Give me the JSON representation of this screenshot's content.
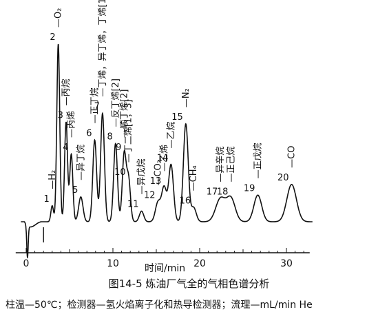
{
  "chart_data": {
    "type": "line",
    "title": "图14-5  炼油厂气全的气相色谱分析",
    "subtitle": "柱温—50℃；检测器—氢火焰离子化和热导检测器；流理—mL/min He",
    "xlabel": "时间/min",
    "ylabel": "",
    "xlim": [
      -2,
      33
    ],
    "x_ticks": [
      0,
      10,
      20,
      30
    ],
    "x_tick_labels": [
      "0",
      "10",
      "20",
      "30"
    ],
    "grid": false,
    "legend": "none",
    "peaks": [
      {
        "num": "1",
        "name": "H₂",
        "rt": 3.0,
        "height": 0.09,
        "width": 0.15
      },
      {
        "num": "2",
        "name": "O₂",
        "rt": 3.7,
        "height": 1.0,
        "width": 0.17
      },
      {
        "num": "3",
        "name": "丙烷",
        "rt": 4.6,
        "height": 0.56,
        "width": 0.17
      },
      {
        "num": "4",
        "name": "丙烯",
        "rt": 5.2,
        "height": 0.38,
        "width": 0.18
      },
      {
        "num": "5",
        "name": "异丁烷",
        "rt": 6.3,
        "height": 0.14,
        "width": 0.25
      },
      {
        "num": "6",
        "name": "正丁烷",
        "rt": 7.9,
        "height": 0.46,
        "width": 0.22
      },
      {
        "num": "7",
        "name": "丁烯，异丁烯，丁烯[1]",
        "rt": 8.8,
        "height": 0.61,
        "width": 0.22
      },
      {
        "num": "8",
        "name": "反丁烯[2]",
        "rt": 10.3,
        "height": 0.44,
        "width": 0.22
      },
      {
        "num": "9",
        "name": "顺丁烯[2]",
        "rt": 11.3,
        "height": 0.38,
        "width": 0.22
      },
      {
        "num": "10",
        "name": "丁二烯[1，3]",
        "rt": 11.8,
        "height": 0.24,
        "width": 0.22
      },
      {
        "num": "11",
        "name": "异戊烷",
        "rt": 13.3,
        "height": 0.06,
        "width": 0.25
      },
      {
        "num": "12",
        "name": "CO₂",
        "rt": 15.2,
        "height": 0.11,
        "width": 0.3
      },
      {
        "num": "13",
        "name": "乙烯",
        "rt": 15.9,
        "height": 0.19,
        "width": 0.28
      },
      {
        "num": "14",
        "name": "乙烷",
        "rt": 16.7,
        "height": 0.32,
        "width": 0.28
      },
      {
        "num": "15",
        "name": "N₂",
        "rt": 18.4,
        "height": 0.55,
        "width": 0.28
      },
      {
        "num": "16",
        "name": "CH₄",
        "rt": 19.3,
        "height": 0.08,
        "width": 0.3
      },
      {
        "num": "17",
        "name": "异辛烷",
        "rt": 22.4,
        "height": 0.13,
        "width": 0.55
      },
      {
        "num": "18",
        "name": "正己烷",
        "rt": 23.6,
        "height": 0.13,
        "width": 0.5
      },
      {
        "num": "19",
        "name": "正戊烷",
        "rt": 26.7,
        "height": 0.15,
        "width": 0.45
      },
      {
        "num": "20",
        "name": "CO",
        "rt": 30.6,
        "height": 0.21,
        "width": 0.55
      }
    ]
  }
}
